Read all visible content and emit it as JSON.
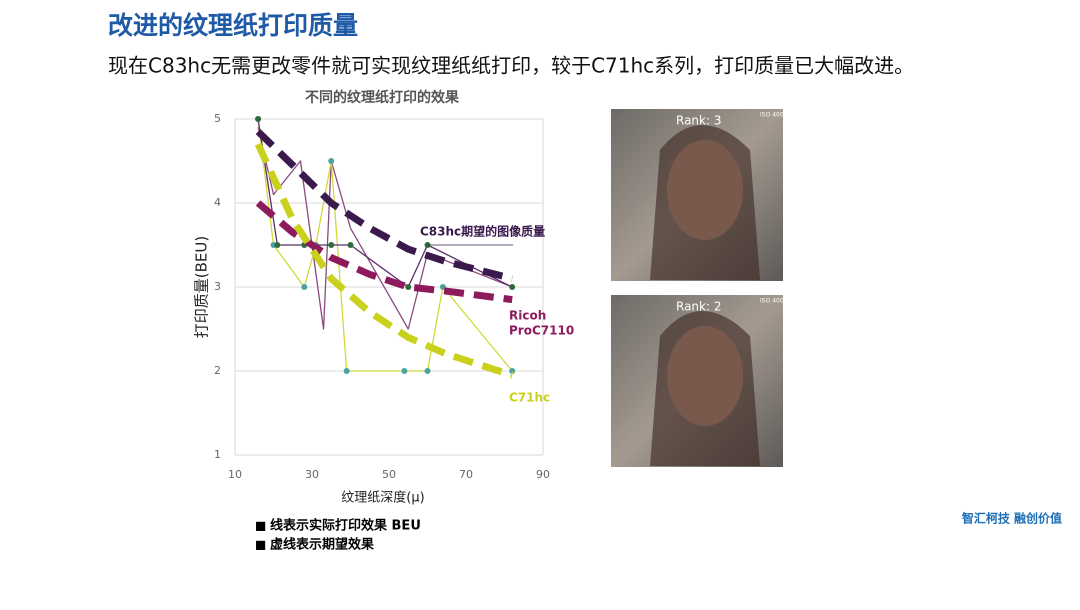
{
  "header": {
    "title": "改进的纹理纸打印质量",
    "subtitle": "现在C83hc无需更改零件就可实现纹理纸纸打印，较于C71hc系列，打印质量已大幅改进。"
  },
  "chart_data": {
    "type": "line",
    "title": "不同的纹理纸打印的效果",
    "x_label": "纹理纸深度(μ)",
    "y_label": "打印质量(BEU)",
    "xlim": [
      10,
      90
    ],
    "xticks": [
      10,
      30,
      50,
      70,
      90
    ],
    "ylim": [
      1,
      5
    ],
    "yticks": [
      1,
      2,
      3,
      4,
      5
    ],
    "grid": true,
    "series": [
      {
        "color": "#8a4a7e",
        "width": 1.3,
        "x": [
          16,
          20,
          27,
          33,
          35,
          40,
          55,
          60,
          82
        ],
        "values": [
          4.9,
          4.1,
          4.5,
          2.5,
          4.5,
          3.7,
          2.5,
          3.4,
          3.0
        ]
      },
      {
        "color": "#d2d83a",
        "width": 1.3,
        "marker": "#4aa3a0",
        "x": [
          16,
          20,
          28,
          31,
          35,
          39,
          54,
          60,
          64,
          82
        ],
        "values": [
          5,
          3.5,
          3,
          3.5,
          4.5,
          2,
          2,
          2,
          3,
          2
        ]
      },
      {
        "color": "#5a2d6b",
        "width": 1.3,
        "marker": "#2f6b3a",
        "x": [
          16,
          21,
          28,
          35,
          40,
          55,
          60,
          82
        ],
        "values": [
          5,
          3.5,
          3.5,
          3.5,
          3.5,
          3,
          3.5,
          3
        ]
      },
      {
        "name": "C83hc期望的图像质量",
        "color": "#3a1a4d",
        "dash": true,
        "width": 7,
        "x": [
          16,
          25,
          35,
          45,
          55,
          65,
          82
        ],
        "values": [
          4.85,
          4.45,
          4.0,
          3.7,
          3.45,
          3.3,
          3.1
        ]
      },
      {
        "name": [
          "Ricoh",
          "ProC7110"
        ],
        "color": "#8e1a5e",
        "dash": true,
        "width": 7,
        "x": [
          16,
          25,
          35,
          45,
          55,
          65,
          82
        ],
        "values": [
          4.0,
          3.65,
          3.35,
          3.15,
          3.0,
          2.95,
          2.85
        ]
      },
      {
        "name": "C71hc",
        "color": "#c9d11c",
        "dash": true,
        "width": 7,
        "x": [
          16,
          25,
          35,
          45,
          55,
          65,
          82
        ],
        "values": [
          4.7,
          3.8,
          3.1,
          2.7,
          2.4,
          2.2,
          1.95
        ]
      }
    ]
  },
  "notes": [
    "线表示实际打印效果 BEU",
    "虚线表示期望效果"
  ],
  "photos": [
    {
      "rank": "Rank: 3",
      "iso": "ISO 400"
    },
    {
      "rank": "Rank: 2",
      "iso": "ISO 400"
    }
  ],
  "footer": "智汇柯技  融创价值"
}
